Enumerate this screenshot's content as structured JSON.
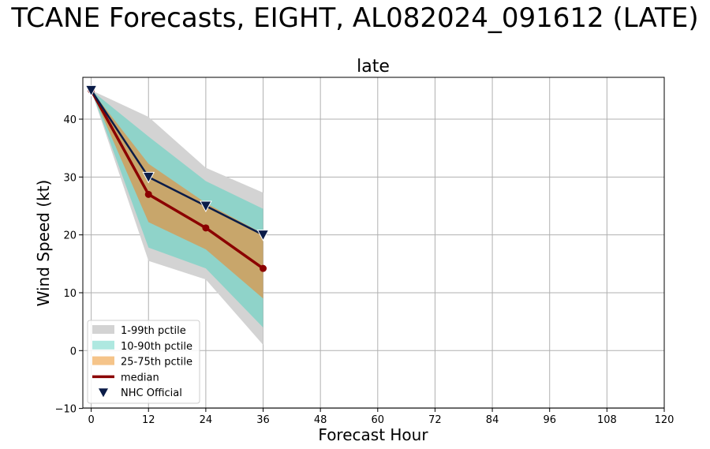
{
  "chart_data": {
    "type": "line",
    "suptitle": "TCANE Forecasts, EIGHT, AL082024_091612 (LATE)",
    "title": "late",
    "xlabel": "Forecast Hour",
    "ylabel": "Wind Speed (kt)",
    "xlim": [
      -1,
      120
    ],
    "ylim": [
      -10,
      47
    ],
    "xticks": [
      0,
      12,
      24,
      36,
      48,
      60,
      72,
      84,
      96,
      108,
      120
    ],
    "yticks": [
      -10,
      0,
      10,
      20,
      30,
      40
    ],
    "grid": true,
    "legend_position": "lower-left",
    "x": [
      0,
      12,
      24,
      36
    ],
    "bands": [
      {
        "name": "1-99th pctile",
        "color": "#d3d3d3",
        "lower": [
          45,
          15.5,
          12.3,
          1.0
        ],
        "upper": [
          45,
          40.4,
          31.6,
          27.3
        ]
      },
      {
        "name": "10-90th pctile",
        "color": "#8fd3c9",
        "lower": [
          45,
          17.8,
          14.2,
          4.0
        ],
        "upper": [
          45,
          37.0,
          29.3,
          24.5
        ]
      },
      {
        "name": "25-75th pctile",
        "color": "#c8a66b",
        "lower": [
          45,
          22.2,
          17.5,
          9.0
        ],
        "upper": [
          45,
          32.3,
          25.5,
          20.2
        ]
      }
    ],
    "median": {
      "name": "median",
      "color": "#8b0000",
      "values": [
        45,
        27.0,
        21.2,
        14.2
      ]
    },
    "nhc_official": {
      "name": "NHC Official",
      "color": "#0b1c48",
      "values": [
        45,
        30,
        25,
        20
      ]
    },
    "legend": [
      {
        "label": "1-99th pctile",
        "kind": "patch",
        "color": "#d3d3d3"
      },
      {
        "label": "10-90th pctile",
        "kind": "patch",
        "color": "#aee8e0"
      },
      {
        "label": "25-75th pctile",
        "kind": "patch",
        "color": "#f5c48a"
      },
      {
        "label": "median",
        "kind": "line",
        "color": "#8b0000"
      },
      {
        "label": "NHC Official",
        "kind": "marker",
        "color": "#0b1c48"
      }
    ]
  }
}
